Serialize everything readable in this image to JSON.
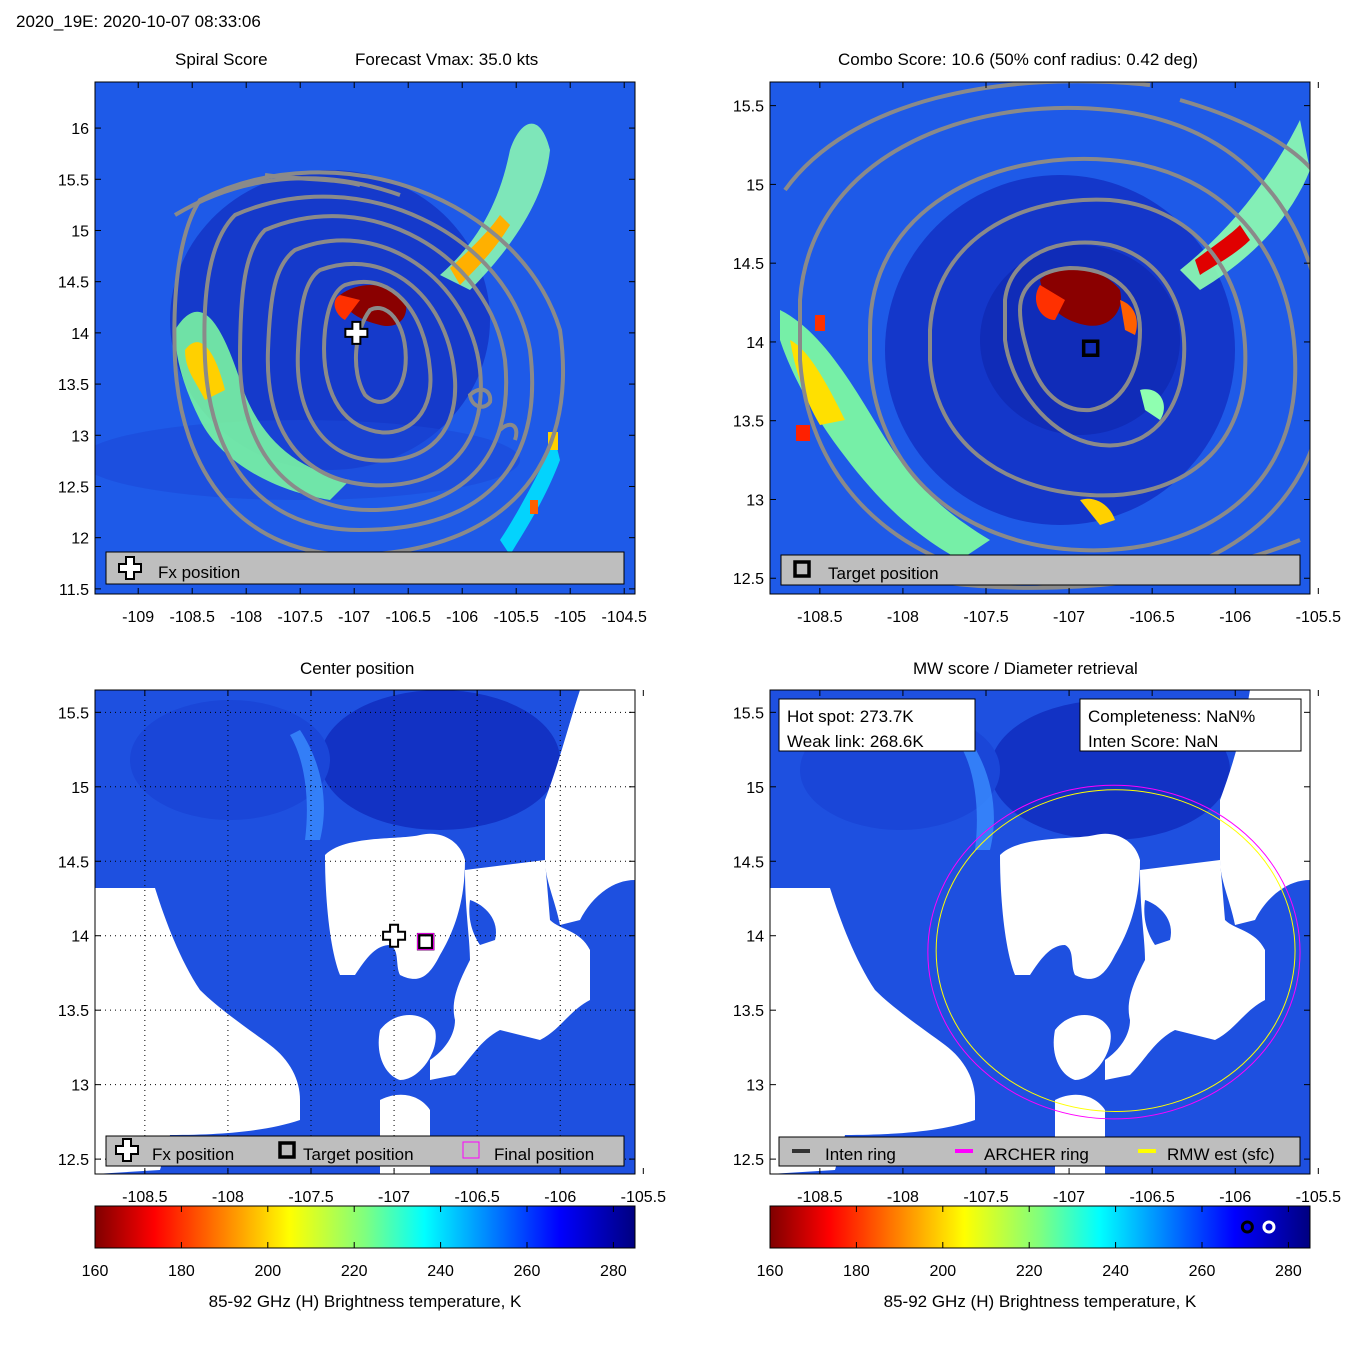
{
  "header": {
    "title": "2020_19E: 2020-10-07 08:33:06"
  },
  "colors": {
    "tb_cold": "#7f0000",
    "tb_warm": "#000080",
    "contour": "#808080",
    "archer_ring": "#ff00ff",
    "rmw_ring": "#ffff00",
    "inten_ring": "#333333",
    "legend_bg": "#bebebe"
  },
  "chart_data": [
    {
      "id": "spiral",
      "type": "heatmap",
      "title_left": "Spiral Score",
      "title_right": "Forecast Vmax: 35.0 kts",
      "xlim": [
        -109.4,
        -104.4
      ],
      "ylim": [
        11.45,
        16.45
      ],
      "xticks": [
        -109,
        -108.5,
        -108,
        -107.5,
        -107,
        -106.5,
        -106,
        -105.5,
        -105,
        -104.5
      ],
      "xtick_labels": [
        "-109",
        "-108.5",
        "-108",
        "-107.5",
        "-107",
        "-106.5",
        "-106",
        "-105.5",
        "-105",
        "-104.5"
      ],
      "yticks": [
        11.5,
        12,
        12.5,
        13,
        13.5,
        14,
        14.5,
        15,
        15.5,
        16
      ],
      "ytick_labels": [
        "11.5",
        "12",
        "12.5",
        "13",
        "13.5",
        "14",
        "14.5",
        "15",
        "15.5",
        "16"
      ],
      "markers": [
        {
          "kind": "fx-plus",
          "lon": -106.98,
          "lat": 14.0
        }
      ],
      "legend": [
        {
          "symbol": "fx-plus",
          "label": "Fx position"
        }
      ]
    },
    {
      "id": "combo",
      "type": "heatmap",
      "title": "Combo Score: 10.6  (50% conf radius: 0.42 deg)",
      "xlim": [
        -108.8,
        -105.55
      ],
      "ylim": [
        12.4,
        15.65
      ],
      "xticks": [
        -108.5,
        -108,
        -107.5,
        -107,
        -106.5,
        -106,
        -105.5
      ],
      "xtick_labels": [
        "-108.5",
        "-108",
        "-107.5",
        "-107",
        "-106.5",
        "-106",
        "-105.5"
      ],
      "yticks": [
        12.5,
        13,
        13.5,
        14,
        14.5,
        15,
        15.5
      ],
      "ytick_labels": [
        "12.5",
        "13",
        "13.5",
        "14",
        "14.5",
        "15",
        "15.5"
      ],
      "markers": [
        {
          "kind": "target-square",
          "lon": -106.87,
          "lat": 13.96
        }
      ],
      "legend": [
        {
          "symbol": "target-square",
          "label": "Target position"
        }
      ]
    },
    {
      "id": "center",
      "type": "heatmap",
      "title": "Center position",
      "xlim": [
        -108.8,
        -105.55
      ],
      "ylim": [
        12.4,
        15.65
      ],
      "xticks": [
        -108.5,
        -108,
        -107.5,
        -107,
        -106.5,
        -106,
        -105.5
      ],
      "xtick_labels": [
        "-108.5",
        "-108",
        "-107.5",
        "-107",
        "-106.5",
        "-106",
        "-105.5"
      ],
      "yticks": [
        12.5,
        13,
        13.5,
        14,
        14.5,
        15,
        15.5
      ],
      "ytick_labels": [
        "12.5",
        "13",
        "13.5",
        "14",
        "14.5",
        "15",
        "15.5"
      ],
      "grid": "dotted",
      "markers": [
        {
          "kind": "fx-plus",
          "lon": -107.0,
          "lat": 14.0
        },
        {
          "kind": "target-square",
          "lon": -106.81,
          "lat": 13.96
        },
        {
          "kind": "final-square",
          "lon": -106.81,
          "lat": 13.96
        }
      ],
      "legend": [
        {
          "symbol": "fx-plus",
          "label": "Fx position"
        },
        {
          "symbol": "target-square",
          "label": "Target position"
        },
        {
          "symbol": "final-square",
          "label": "Final position"
        }
      ]
    },
    {
      "id": "mw",
      "type": "heatmap",
      "title": "MW score / Diameter retrieval",
      "xlim": [
        -108.8,
        -105.55
      ],
      "ylim": [
        12.4,
        15.65
      ],
      "xticks": [
        -108.5,
        -108,
        -107.5,
        -107,
        -106.5,
        -106,
        -105.5
      ],
      "xtick_labels": [
        "-108.5",
        "-108",
        "-107.5",
        "-107",
        "-106.5",
        "-106",
        "-105.5"
      ],
      "yticks": [
        12.5,
        13,
        13.5,
        14,
        14.5,
        15,
        15.5
      ],
      "ytick_labels": [
        "12.5",
        "13",
        "13.5",
        "14",
        "14.5",
        "15",
        "15.5"
      ],
      "rings": [
        {
          "name": "archer",
          "lon": -106.73,
          "lat": 13.89,
          "radius_deg": 1.12
        },
        {
          "name": "rmw",
          "lon": -106.72,
          "lat": 13.9,
          "radius_deg": 1.08
        }
      ],
      "info_left": [
        "Hot spot: 273.7K",
        "Weak link: 268.6K"
      ],
      "info_right": [
        "Completeness: NaN%",
        "Inten Score: NaN"
      ],
      "legend": [
        {
          "symbol": "line-inten",
          "label": "Inten ring"
        },
        {
          "symbol": "line-archer",
          "label": "ARCHER ring"
        },
        {
          "symbol": "line-rmw",
          "label": "RMW est (sfc)"
        }
      ]
    }
  ],
  "colorbars": [
    {
      "id": "cb-left",
      "range": [
        160,
        285
      ],
      "ticks": [
        160,
        180,
        200,
        220,
        240,
        260,
        280
      ],
      "tick_labels": [
        "160",
        "180",
        "200",
        "220",
        "240",
        "260",
        "280"
      ],
      "label": "85-92 GHz (H) Brightness temperature, K"
    },
    {
      "id": "cb-right",
      "range": [
        160,
        285
      ],
      "ticks": [
        160,
        180,
        200,
        220,
        240,
        260,
        280
      ],
      "tick_labels": [
        "160",
        "180",
        "200",
        "220",
        "240",
        "260",
        "280"
      ],
      "label": "85-92 GHz (H) Brightness temperature, K",
      "markers": [
        {
          "kind": "ring-black",
          "value": 270.5
        },
        {
          "kind": "ring-white",
          "value": 275.5
        }
      ]
    }
  ]
}
